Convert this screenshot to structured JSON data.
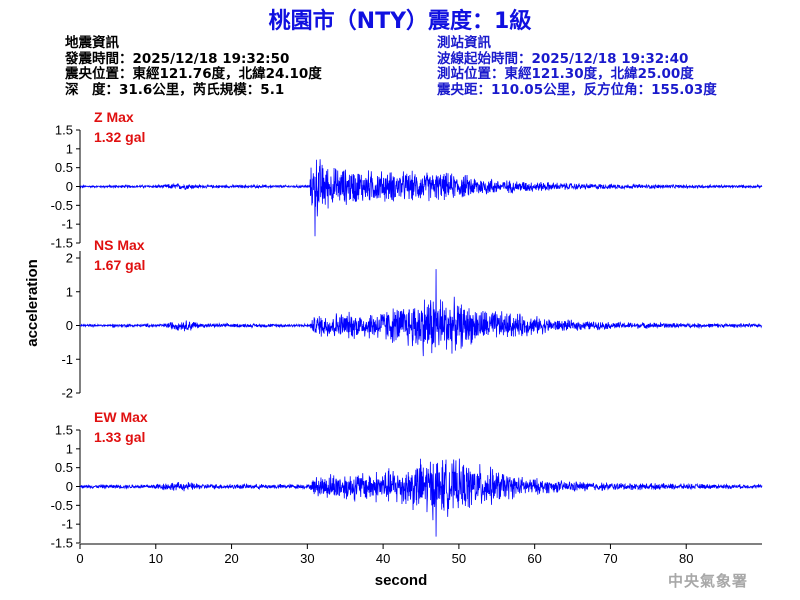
{
  "title": "桃園市（NTY）震度：1級",
  "info_left": {
    "heading": "地震資訊",
    "origin_time": "發震時間：2025/12/18 19:32:50",
    "epicenter": "震央位置：東經121.76度，北緯24.10度",
    "depth_magnitude": "深　度：31.6公里，芮氏規模：5.1"
  },
  "info_right": {
    "heading": "測站資訊",
    "start_time": "波線起始時間：2025/12/18 19:32:40",
    "station_location": "測站位置：東經121.30度，北緯25.00度",
    "distance_azimuth": "震央距：110.05公里，反方位角：155.03度"
  },
  "footer": "中央氣象署",
  "colors": {
    "trace": "#0000ff",
    "max_label": "#e01010",
    "title": "#1010e0",
    "station_info": "#1a1acc"
  },
  "chart_data": {
    "type": "line",
    "xlabel": "second",
    "ylabel": "acceleration",
    "xlim": [
      0,
      90
    ],
    "x_ticks": [
      "0",
      "10",
      "20",
      "30",
      "40",
      "50",
      "60",
      "70",
      "80"
    ],
    "duration_s": 90,
    "p_arrival_s": 30.5,
    "panels": [
      {
        "component": "Z",
        "label": "Z Max",
        "max_text": "1.32 gal",
        "max_gal": 1.32,
        "ylim": [
          -1.5,
          1.5
        ],
        "y_ticks": [
          "1.5",
          "1",
          "0.5",
          "0",
          "-0.5",
          "-1",
          "-1.5"
        ],
        "y_values": [
          1.5,
          1,
          0.5,
          0,
          -0.5,
          -1,
          -1.5
        ],
        "envelope": [
          [
            0,
            0.03
          ],
          [
            11,
            0.05
          ],
          [
            12,
            0.09
          ],
          [
            14,
            0.1
          ],
          [
            16,
            0.05
          ],
          [
            30.3,
            0.04
          ],
          [
            30.5,
            0.6
          ],
          [
            31,
            1.0
          ],
          [
            33,
            0.6
          ],
          [
            38,
            0.5
          ],
          [
            43,
            0.45
          ],
          [
            46,
            0.45
          ],
          [
            50,
            0.38
          ],
          [
            56,
            0.2
          ],
          [
            65,
            0.1
          ],
          [
            75,
            0.06
          ],
          [
            90,
            0.04
          ]
        ],
        "peak": [
          31.0,
          -1.32
        ]
      },
      {
        "component": "NS",
        "label": "NS Max",
        "max_text": "1.67 gal",
        "max_gal": 1.67,
        "ylim": [
          -2,
          2
        ],
        "y_ticks": [
          "2",
          "1",
          "0",
          "-1",
          "-2"
        ],
        "y_values": [
          2,
          1,
          0,
          -1,
          -2
        ],
        "envelope": [
          [
            0,
            0.04
          ],
          [
            11,
            0.06
          ],
          [
            12,
            0.14
          ],
          [
            14.5,
            0.2
          ],
          [
            16,
            0.07
          ],
          [
            30.3,
            0.05
          ],
          [
            31,
            0.35
          ],
          [
            33,
            0.45
          ],
          [
            38,
            0.45
          ],
          [
            43,
            0.7
          ],
          [
            46,
            1.1
          ],
          [
            48,
            1.0
          ],
          [
            52,
            0.6
          ],
          [
            58,
            0.4
          ],
          [
            63,
            0.2
          ],
          [
            70,
            0.12
          ],
          [
            80,
            0.08
          ],
          [
            90,
            0.06
          ]
        ],
        "peak": [
          47.0,
          1.67
        ]
      },
      {
        "component": "EW",
        "label": "EW Max",
        "max_text": "1.33 gal",
        "max_gal": 1.33,
        "ylim": [
          -1.5,
          1.5
        ],
        "y_ticks": [
          "1.5",
          "1",
          "0.5",
          "0",
          "-0.5",
          "-1",
          "-1.5"
        ],
        "y_values": [
          1.5,
          1,
          0.5,
          0,
          -0.5,
          -1,
          -1.5
        ],
        "envelope": [
          [
            0,
            0.05
          ],
          [
            9,
            0.07
          ],
          [
            11,
            0.12
          ],
          [
            14,
            0.14
          ],
          [
            16,
            0.08
          ],
          [
            30.3,
            0.07
          ],
          [
            31,
            0.3
          ],
          [
            33,
            0.4
          ],
          [
            38,
            0.45
          ],
          [
            43,
            0.6
          ],
          [
            46,
            0.95
          ],
          [
            48,
            0.85
          ],
          [
            53,
            0.65
          ],
          [
            58,
            0.3
          ],
          [
            63,
            0.18
          ],
          [
            70,
            0.12
          ],
          [
            80,
            0.08
          ],
          [
            90,
            0.06
          ]
        ],
        "peak": [
          47.0,
          -1.33
        ]
      }
    ]
  }
}
